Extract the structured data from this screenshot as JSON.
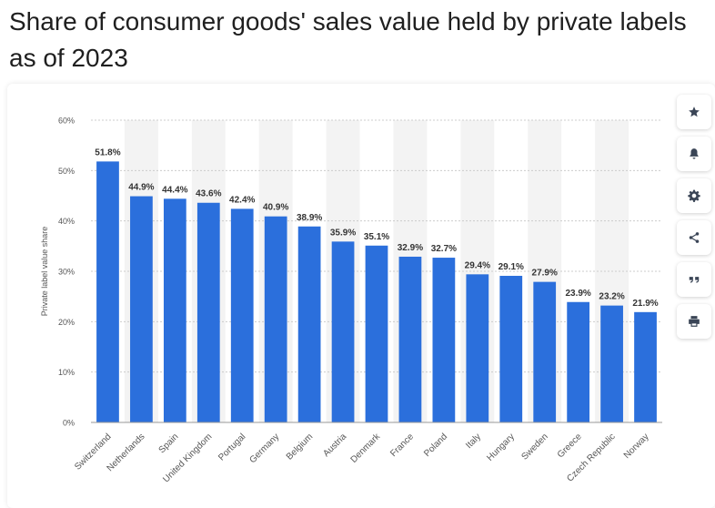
{
  "page": {
    "title_line1": "Share of consumer goods' sales value held by private labels",
    "title_line2": "as of 2023"
  },
  "toolbar": {
    "buttons": [
      {
        "icon": "star-icon",
        "label": "Bookmark"
      },
      {
        "icon": "bell-icon",
        "label": "Notifications"
      },
      {
        "icon": "gear-icon",
        "label": "Settings"
      },
      {
        "icon": "share-icon",
        "label": "Share"
      },
      {
        "icon": "quote-icon",
        "label": "Cite"
      },
      {
        "icon": "print-icon",
        "label": "Print"
      }
    ]
  },
  "colors": {
    "bar": "#2b6fdc",
    "grid": "#cccccc",
    "band": "#f3f3f3",
    "tick": "#555555",
    "label": "#333333"
  },
  "chart_data": {
    "type": "bar",
    "title": "Share of consumer goods' sales value held by private labels as of 2023",
    "xlabel": "",
    "ylabel": "Private label value share",
    "ylim": [
      0,
      60
    ],
    "yticks": [
      "0%",
      "10%",
      "20%",
      "30%",
      "40%",
      "50%",
      "60%"
    ],
    "grid": true,
    "categories": [
      "Switzerland",
      "Netherlands",
      "Spain",
      "United Kingdom",
      "Portugal",
      "Germany",
      "Belgium",
      "Austria",
      "Denmark",
      "France",
      "Poland",
      "Italy",
      "Hungary",
      "Sweden",
      "Greece",
      "Czech Republic",
      "Norway"
    ],
    "values": [
      51.8,
      44.9,
      44.4,
      43.6,
      42.4,
      40.9,
      38.9,
      35.9,
      35.1,
      32.9,
      32.7,
      29.4,
      29.1,
      27.9,
      23.9,
      23.2,
      21.9
    ],
    "value_labels": [
      "51.8%",
      "44.9%",
      "44.4%",
      "43.6%",
      "42.4%",
      "40.9%",
      "38.9%",
      "35.9%",
      "35.1%",
      "32.9%",
      "32.7%",
      "29.4%",
      "29.1%",
      "27.9%",
      "23.9%",
      "23.2%",
      "21.9%"
    ]
  }
}
